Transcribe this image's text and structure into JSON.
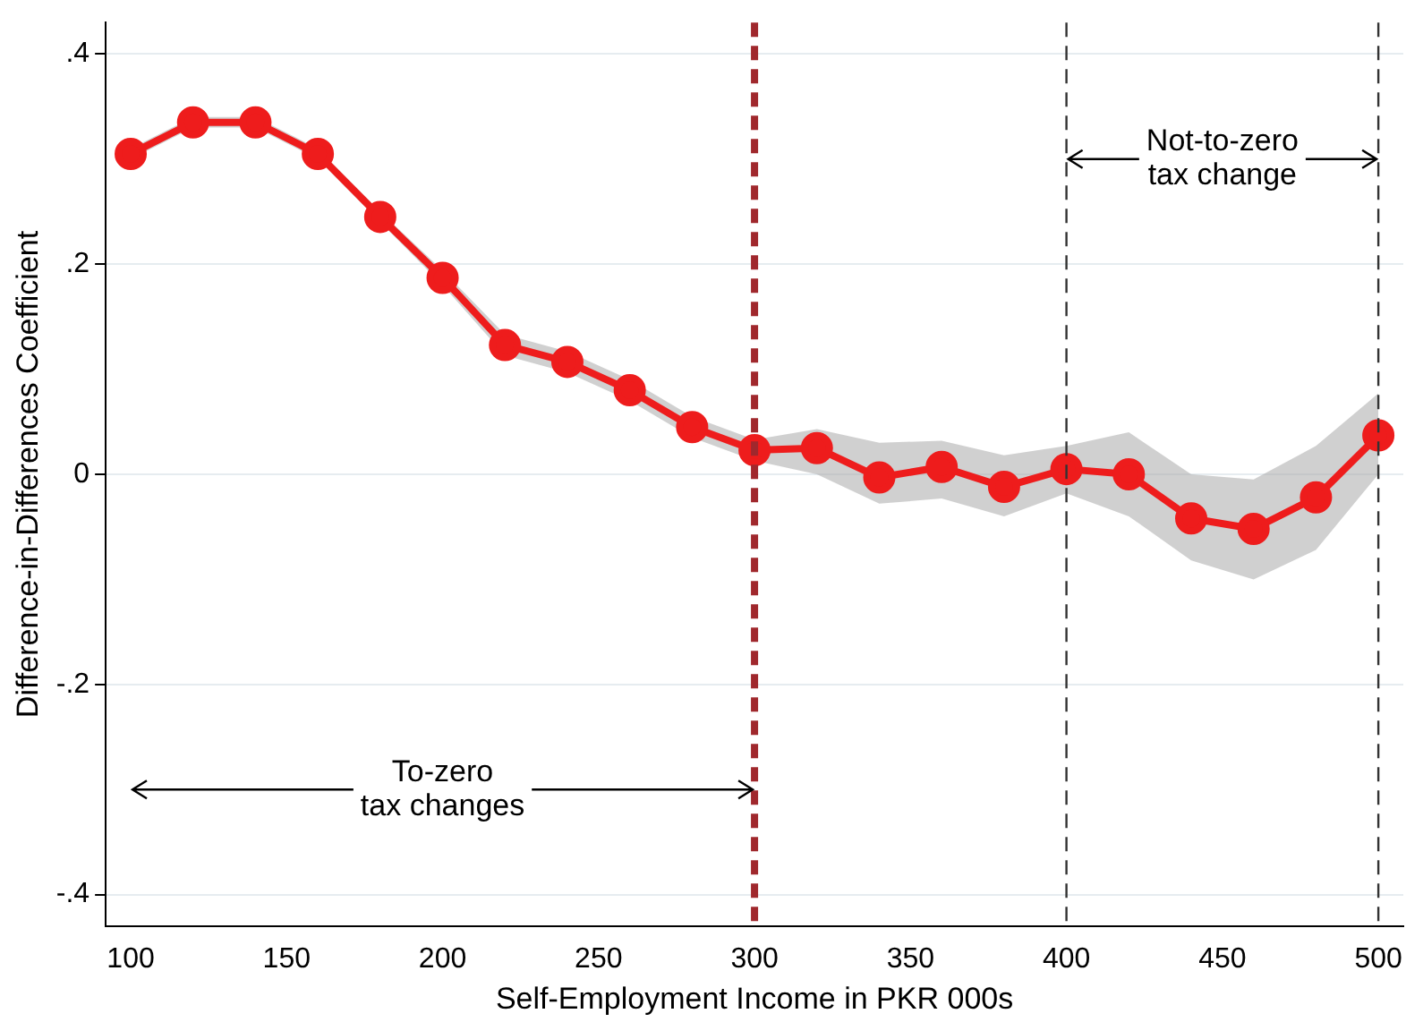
{
  "chart_data": {
    "type": "line",
    "xlabel": "Self-Employment Income in PKR 000s",
    "ylabel": "Difference-in-Differences Coefficient",
    "x": [
      100,
      120,
      140,
      160,
      180,
      200,
      220,
      240,
      260,
      280,
      300,
      320,
      340,
      360,
      380,
      400,
      420,
      440,
      460,
      480,
      500
    ],
    "series": [
      {
        "color": "#ee1c1c",
        "values": [
          0.305,
          0.335,
          0.335,
          0.305,
          0.245,
          0.187,
          0.123,
          0.107,
          0.08,
          0.045,
          0.023,
          0.025,
          -0.003,
          0.007,
          -0.012,
          0.005,
          0.0,
          -0.042,
          -0.052,
          -0.022,
          0.037
        ],
        "lower": [
          0.3,
          0.33,
          0.33,
          0.3,
          0.24,
          0.18,
          0.113,
          0.097,
          0.07,
          0.035,
          0.013,
          0.0,
          -0.028,
          -0.023,
          -0.04,
          -0.018,
          -0.04,
          -0.082,
          -0.1,
          -0.072,
          0.0
        ],
        "upper": [
          0.31,
          0.34,
          0.34,
          0.31,
          0.25,
          0.194,
          0.133,
          0.117,
          0.09,
          0.055,
          0.033,
          0.043,
          0.03,
          0.032,
          0.018,
          0.027,
          0.04,
          0.0,
          -0.005,
          0.027,
          0.077
        ]
      }
    ],
    "xlim": [
      92,
      508
    ],
    "xticks": [
      100,
      150,
      200,
      250,
      300,
      350,
      400,
      450,
      500
    ],
    "ylim": [
      -0.43,
      0.43
    ],
    "yticks": [
      {
        "value": -0.4,
        "label": "-.4"
      },
      {
        "value": -0.2,
        "label": "-.2"
      },
      0,
      {
        "value": 0.2,
        "label": ".2"
      },
      {
        "value": 0.4,
        "label": ".4"
      }
    ],
    "grid": "y",
    "marker": "circle",
    "line_style": "solid",
    "legend": false,
    "ref_lines": [
      {
        "axis": "x",
        "value": 300,
        "color": "#a0282d",
        "line_style": "dashed"
      },
      {
        "axis": "x",
        "value": 400,
        "color": "#333333",
        "line_style": "dashed"
      },
      {
        "axis": "x",
        "value": 500,
        "color": "#333333",
        "line_style": "dashed"
      }
    ],
    "annotations": [
      {
        "text": "To-zero\ntax changes",
        "x": 300,
        "y": -0.3
      },
      {
        "text": "Not-to-zero\ntax change",
        "x": 500,
        "y": 0.3
      }
    ]
  }
}
